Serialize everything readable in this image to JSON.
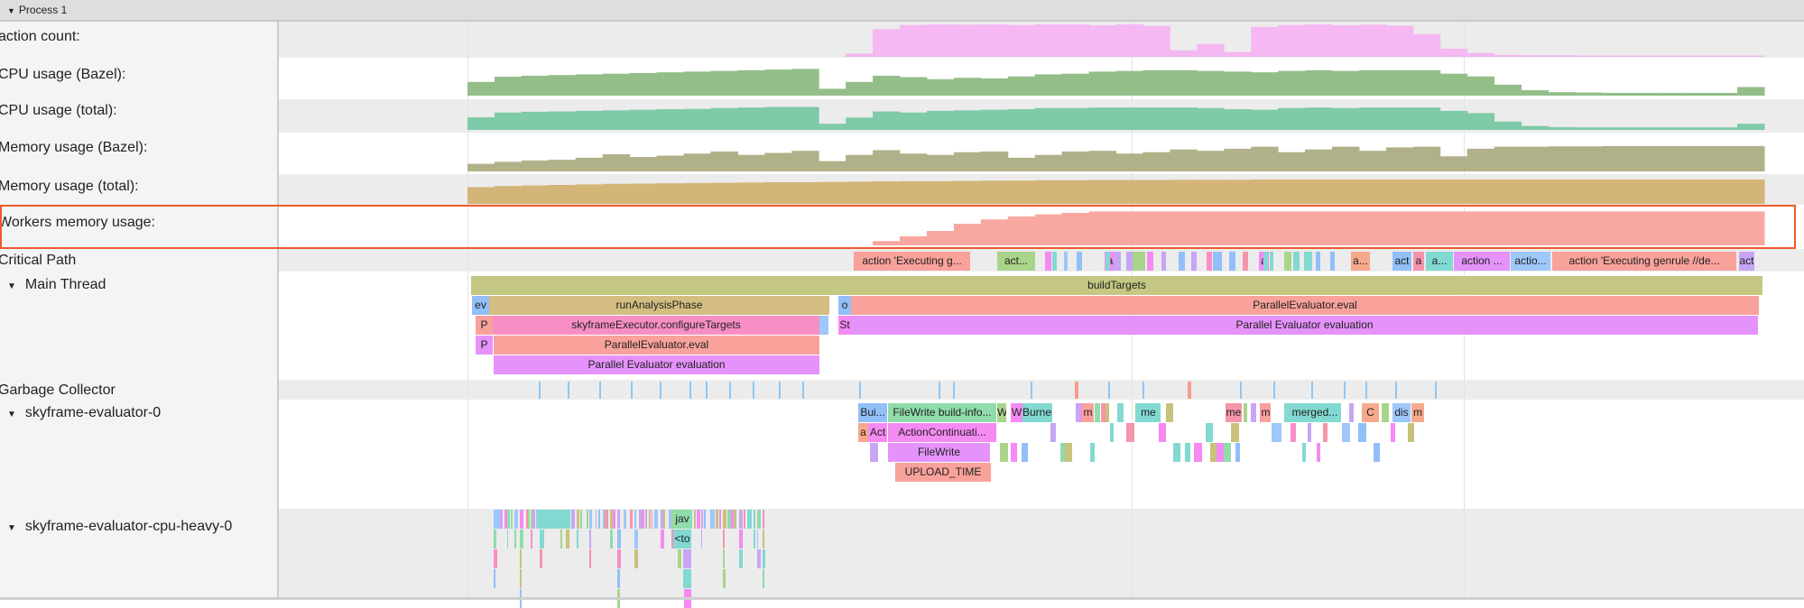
{
  "header": {
    "title": "Process 1",
    "expand_icon": "triangle-down-icon"
  },
  "tracks": {
    "action_count": "action count:",
    "cpu_bazel": "CPU usage (Bazel):",
    "cpu_total": "CPU usage (total):",
    "mem_bazel": "Memory usage (Bazel):",
    "mem_total": "Memory usage (total):",
    "workers_mem": "Workers memory usage:",
    "critical_path": "Critical Path",
    "main_thread": "Main Thread",
    "gc": "Garbage Collector",
    "sky0": "skyframe-evaluator-0",
    "cpu_heavy": "skyframe-evaluator-cpu-heavy-0"
  },
  "colors": {
    "highlight_box": "#ef5a2c",
    "action_count": "#f5b8f2",
    "cpu_bazel": "#93be88",
    "cpu_total": "#7fcaa8",
    "mem_bazel": "#b1b189",
    "mem_total": "#d3b577",
    "workers_mem": "#f9a7a1",
    "gc_tick": "#8cc8f7",
    "gc_tick_alt": "#f79c8e"
  },
  "counters": {
    "action_count": [
      0,
      0,
      0,
      0,
      0,
      0,
      0,
      0,
      0,
      0,
      0,
      0,
      0,
      0,
      10,
      85,
      98,
      100,
      99,
      100,
      98,
      100,
      100,
      97,
      100,
      95,
      20,
      40,
      15,
      92,
      98,
      100,
      97,
      99,
      96,
      70,
      25,
      12,
      6,
      5,
      5,
      4,
      4,
      4,
      4,
      4,
      4,
      4
    ],
    "cpu_bazel": [
      40,
      55,
      58,
      60,
      62,
      64,
      66,
      68,
      70,
      72,
      74,
      76,
      78,
      20,
      40,
      58,
      54,
      48,
      52,
      50,
      56,
      62,
      64,
      70,
      72,
      74,
      74,
      72,
      70,
      68,
      72,
      74,
      72,
      74,
      74,
      74,
      64,
      56,
      32,
      16,
      10,
      9,
      8,
      8,
      8,
      8,
      8,
      25
    ],
    "cpu_total": [
      45,
      62,
      65,
      66,
      68,
      70,
      72,
      74,
      75,
      78,
      80,
      82,
      82,
      22,
      44,
      66,
      62,
      68,
      70,
      72,
      74,
      78,
      78,
      80,
      80,
      80,
      80,
      78,
      74,
      72,
      78,
      80,
      78,
      80,
      80,
      80,
      68,
      60,
      30,
      14,
      10,
      9,
      9,
      9,
      9,
      9,
      9,
      22
    ],
    "mem_bazel": [
      22,
      28,
      32,
      34,
      40,
      50,
      42,
      46,
      52,
      58,
      48,
      54,
      60,
      30,
      48,
      62,
      52,
      48,
      56,
      58,
      40,
      48,
      58,
      60,
      52,
      56,
      64,
      60,
      66,
      72,
      56,
      64,
      72,
      60,
      70,
      72,
      44,
      66,
      72,
      72,
      73,
      73,
      74,
      74,
      74,
      74,
      74,
      74
    ],
    "mem_total": [
      62,
      66,
      68,
      70,
      72,
      74,
      75,
      76,
      77,
      78,
      79,
      80,
      80,
      81,
      82,
      83,
      84,
      84,
      85,
      86,
      86,
      87,
      87,
      88,
      88,
      88,
      89,
      89,
      89,
      90,
      90,
      90,
      90,
      90,
      90,
      90,
      90,
      90,
      90,
      90,
      90,
      90,
      90,
      90,
      90,
      90,
      90,
      90
    ],
    "workers_mem": [
      0,
      0,
      0,
      0,
      0,
      0,
      0,
      0,
      0,
      0,
      0,
      0,
      0,
      0,
      0,
      12,
      25,
      40,
      60,
      72,
      80,
      86,
      90,
      94,
      94,
      94,
      94,
      94,
      94,
      94,
      94,
      94,
      94,
      94,
      94,
      94,
      94,
      94,
      94,
      94,
      94,
      94,
      94,
      94,
      94,
      94,
      94,
      94
    ]
  },
  "main_thread": {
    "buildTargets": "buildTargets",
    "ev": "ev",
    "runAnalysisPhase": "runAnalysisPhase",
    "o": "o",
    "pe_eval": "ParallelEvaluator.eval",
    "p1": "P",
    "configureTargets": "skyframeExecutor.configureTargets",
    "st": "St",
    "pee": "Parallel Evaluator evaluation",
    "p2": "P",
    "pe_eval2": "ParallelEvaluator.eval",
    "pee2": "Parallel Evaluator evaluation"
  },
  "critical_path": {
    "c1": "action 'Executing g...",
    "c2": "act...",
    "c3": "a",
    "c4": "a",
    "c5": "a...",
    "c6": "act",
    "c7": "a",
    "c8": "a...",
    "c9": "action ...",
    "c10": "actio...",
    "c11": "action 'Executing genrule //de...",
    "c12": "act"
  },
  "sky0": {
    "s1": "Bui...",
    "s2": "FileWrite build-info...",
    "s3": "W",
    "s4": "W",
    "s5": "Burner",
    "s6": "m",
    "s7": "me",
    "s8": "me",
    "s9": "m",
    "s10": "merged...",
    "s11": "C",
    "s12": "dis",
    "s13": "m",
    "r2a": "a",
    "r2b": "Act",
    "r2c": "ActionContinuati...",
    "r3": "FileWrite",
    "r4": "UPLOAD_TIME"
  },
  "cpu_heavy": {
    "h1": "jav",
    "h2": "<to"
  }
}
